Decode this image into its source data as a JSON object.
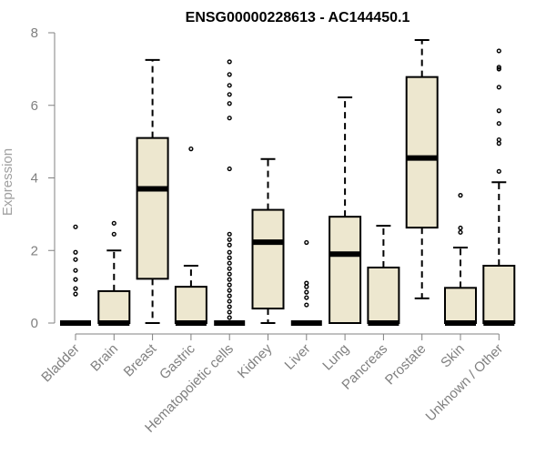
{
  "chart_data": {
    "type": "box",
    "title": "ENSG00000228613 - AC144450.1",
    "xlabel": "",
    "ylabel": "Expression",
    "ylim": [
      0,
      8
    ],
    "yticks": [
      0,
      2,
      4,
      6,
      8
    ],
    "grid": false,
    "legend": "none",
    "colors": {
      "box_fill": "#ede7cf",
      "stroke": "#000000",
      "axis": "#808080"
    },
    "categories": [
      "Bladder",
      "Brain",
      "Breast",
      "Gastric",
      "Hematopoietic cells",
      "Kidney",
      "Liver",
      "Lung",
      "Pancreas",
      "Prostate",
      "Skin",
      "Unknown / Other"
    ],
    "boxes": [
      {
        "category": "Bladder",
        "min": 0,
        "q1": 0,
        "median": 0,
        "q3": 0,
        "max": 0,
        "outliers": [
          0.8,
          0.95,
          1.2,
          1.45,
          1.75,
          1.95,
          2.65
        ]
      },
      {
        "category": "Brain",
        "min": 0,
        "q1": 0,
        "median": 0,
        "q3": 0.88,
        "max": 2.0,
        "outliers": [
          2.45,
          2.75
        ]
      },
      {
        "category": "Breast",
        "min": 0,
        "q1": 1.22,
        "median": 3.7,
        "q3": 5.1,
        "max": 7.25,
        "outliers": []
      },
      {
        "category": "Gastric",
        "min": 0,
        "q1": 0,
        "median": 0,
        "q3": 1.0,
        "max": 1.58,
        "outliers": [
          4.8
        ]
      },
      {
        "category": "Hematopoietic cells",
        "min": 0,
        "q1": 0,
        "median": 0,
        "q3": 0,
        "max": 0,
        "outliers": [
          0.15,
          0.3,
          0.45,
          0.6,
          0.75,
          0.9,
          1.05,
          1.2,
          1.35,
          1.5,
          1.65,
          1.8,
          1.95,
          2.15,
          2.3,
          2.45,
          4.25,
          5.65,
          6.05,
          6.3,
          6.55,
          6.85,
          7.2
        ]
      },
      {
        "category": "Kidney",
        "min": 0,
        "q1": 0.4,
        "median": 2.23,
        "q3": 3.12,
        "max": 4.52,
        "outliers": []
      },
      {
        "category": "Liver",
        "min": 0,
        "q1": 0,
        "median": 0,
        "q3": 0,
        "max": 0,
        "outliers": [
          0.5,
          0.7,
          0.85,
          1.0,
          1.1,
          2.22
        ]
      },
      {
        "category": "Lung",
        "min": 0,
        "q1": 0,
        "median": 1.9,
        "q3": 2.93,
        "max": 6.22,
        "outliers": []
      },
      {
        "category": "Pancreas",
        "min": 0,
        "q1": 0,
        "median": 0,
        "q3": 1.53,
        "max": 2.68,
        "outliers": []
      },
      {
        "category": "Prostate",
        "min": 0.68,
        "q1": 2.63,
        "median": 4.55,
        "q3": 6.78,
        "max": 7.8,
        "outliers": []
      },
      {
        "category": "Skin",
        "min": 0,
        "q1": 0,
        "median": 0,
        "q3": 0.97,
        "max": 2.08,
        "outliers": [
          2.5,
          2.62,
          3.52
        ]
      },
      {
        "category": "Unknown / Other",
        "min": 0,
        "q1": 0,
        "median": 0,
        "q3": 1.58,
        "max": 3.88,
        "outliers": [
          4.18,
          4.95,
          5.05,
          5.5,
          5.85,
          6.5,
          7.0,
          7.05,
          7.5
        ]
      }
    ]
  }
}
